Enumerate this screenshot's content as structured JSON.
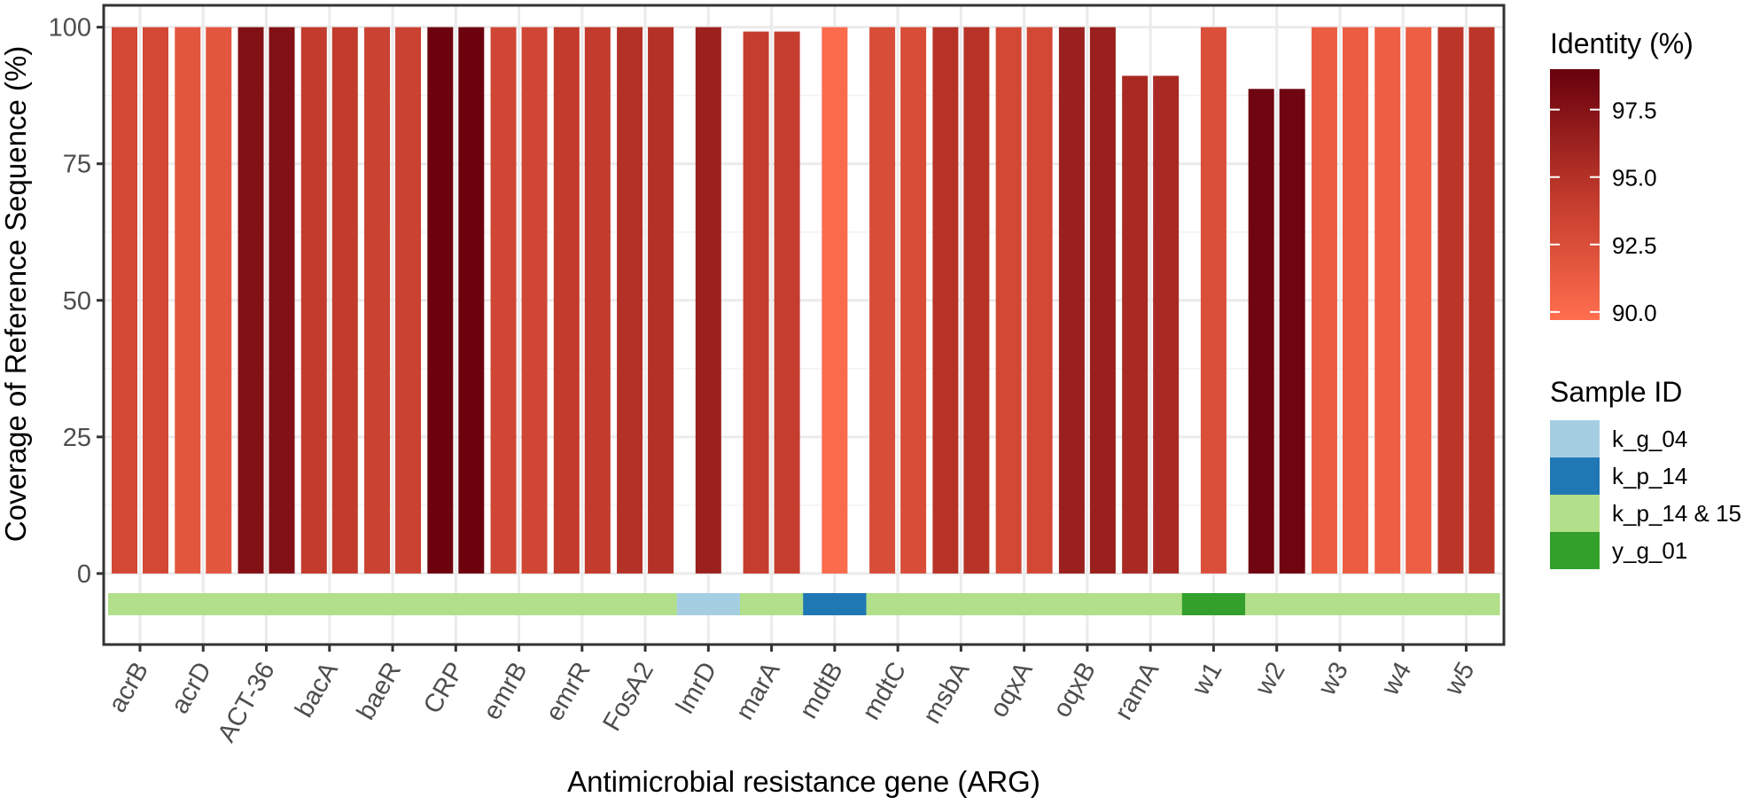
{
  "chart_data": {
    "type": "bar",
    "xlabel": "Antimicrobial resistance gene (ARG)",
    "ylabel": "Coverage of Reference Sequence (%)",
    "ylim": [
      -13,
      104
    ],
    "yticks": [
      0,
      25,
      50,
      75,
      100
    ],
    "grid": true,
    "legend_position": "right",
    "categories": [
      "acrB",
      "acrD",
      "ACT-36",
      "bacA",
      "baeR",
      "CRP",
      "emrB",
      "emrR",
      "FosA2",
      "lmrD",
      "marA",
      "mdtB",
      "mdtC",
      "msbA",
      "oqxA",
      "oqxB",
      "ramA",
      "w1",
      "w2",
      "w3",
      "w4",
      "w5"
    ],
    "sample_strip": [
      "k_p_14 & 15",
      "k_p_14 & 15",
      "k_p_14 & 15",
      "k_p_14 & 15",
      "k_p_14 & 15",
      "k_p_14 & 15",
      "k_p_14 & 15",
      "k_p_14 & 15",
      "k_p_14 & 15",
      "k_g_04",
      "k_p_14 & 15",
      "k_p_14",
      "k_p_14 & 15",
      "k_p_14 & 15",
      "k_p_14 & 15",
      "k_p_14 & 15",
      "k_p_14 & 15",
      "y_g_01",
      "k_p_14 & 15",
      "k_p_14 & 15",
      "k_p_14 & 15",
      "k_p_14 & 15"
    ],
    "bars": [
      {
        "gene": "acrB",
        "slot": 0,
        "coverage": 100,
        "identity": 93.0
      },
      {
        "gene": "acrB",
        "slot": 1,
        "coverage": 100,
        "identity": 93.0
      },
      {
        "gene": "acrD",
        "slot": 0,
        "coverage": 100,
        "identity": 91.8
      },
      {
        "gene": "acrD",
        "slot": 1,
        "coverage": 100,
        "identity": 91.8
      },
      {
        "gene": "ACT-36",
        "slot": 0,
        "coverage": 100,
        "identity": 97.6
      },
      {
        "gene": "ACT-36",
        "slot": 1,
        "coverage": 100,
        "identity": 97.6
      },
      {
        "gene": "bacA",
        "slot": 0,
        "coverage": 100,
        "identity": 94.2
      },
      {
        "gene": "bacA",
        "slot": 1,
        "coverage": 100,
        "identity": 94.2
      },
      {
        "gene": "baeR",
        "slot": 0,
        "coverage": 100,
        "identity": 93.6
      },
      {
        "gene": "baeR",
        "slot": 1,
        "coverage": 100,
        "identity": 93.6
      },
      {
        "gene": "CRP",
        "slot": 0,
        "coverage": 100,
        "identity": 98.8
      },
      {
        "gene": "CRP",
        "slot": 1,
        "coverage": 100,
        "identity": 98.8
      },
      {
        "gene": "emrB",
        "slot": 0,
        "coverage": 100,
        "identity": 93.2
      },
      {
        "gene": "emrB",
        "slot": 1,
        "coverage": 100,
        "identity": 93.2
      },
      {
        "gene": "emrR",
        "slot": 0,
        "coverage": 100,
        "identity": 94.2
      },
      {
        "gene": "emrR",
        "slot": 1,
        "coverage": 100,
        "identity": 94.2
      },
      {
        "gene": "FosA2",
        "slot": 0,
        "coverage": 100,
        "identity": 95.0
      },
      {
        "gene": "FosA2",
        "slot": 1,
        "coverage": 100,
        "identity": 95.0
      },
      {
        "gene": "lmrD",
        "slot": 0.5,
        "coverage": 100,
        "identity": 96.3
      },
      {
        "gene": "marA",
        "slot": 0,
        "coverage": 99.2,
        "identity": 94.0
      },
      {
        "gene": "marA",
        "slot": 1,
        "coverage": 99.2,
        "identity": 94.0
      },
      {
        "gene": "mdtB",
        "slot": 0.5,
        "coverage": 100,
        "identity": 90.0
      },
      {
        "gene": "mdtC",
        "slot": 0,
        "coverage": 100,
        "identity": 92.6
      },
      {
        "gene": "mdtC",
        "slot": 1,
        "coverage": 100,
        "identity": 92.6
      },
      {
        "gene": "msbA",
        "slot": 0,
        "coverage": 100,
        "identity": 94.8
      },
      {
        "gene": "msbA",
        "slot": 1,
        "coverage": 100,
        "identity": 94.8
      },
      {
        "gene": "oqxA",
        "slot": 0,
        "coverage": 100,
        "identity": 93.0
      },
      {
        "gene": "oqxA",
        "slot": 1,
        "coverage": 100,
        "identity": 93.0
      },
      {
        "gene": "oqxB",
        "slot": 0,
        "coverage": 100,
        "identity": 96.4
      },
      {
        "gene": "oqxB",
        "slot": 1,
        "coverage": 100,
        "identity": 96.4
      },
      {
        "gene": "ramA",
        "slot": 0,
        "coverage": 91.1,
        "identity": 95.6
      },
      {
        "gene": "ramA",
        "slot": 1,
        "coverage": 91.1,
        "identity": 95.6
      },
      {
        "gene": "w1",
        "slot": 0.5,
        "coverage": 100,
        "identity": 92.4
      },
      {
        "gene": "w2",
        "slot": 0,
        "coverage": 88.7,
        "identity": 98.6
      },
      {
        "gene": "w2",
        "slot": 1,
        "coverage": 88.7,
        "identity": 98.6
      },
      {
        "gene": "w3",
        "slot": 0,
        "coverage": 100,
        "identity": 91.2
      },
      {
        "gene": "w3",
        "slot": 1,
        "coverage": 100,
        "identity": 91.2
      },
      {
        "gene": "w4",
        "slot": 0,
        "coverage": 100,
        "identity": 91.0
      },
      {
        "gene": "w4",
        "slot": 1,
        "coverage": 100,
        "identity": 91.0
      },
      {
        "gene": "w5",
        "slot": 0,
        "coverage": 100,
        "identity": 94.6
      },
      {
        "gene": "w5",
        "slot": 1,
        "coverage": 100,
        "identity": 94.6
      }
    ],
    "color_legend": {
      "title": "Identity (%)",
      "min": 89.7,
      "max": 99.0,
      "ticks": [
        {
          "value": 97.5,
          "label": "97.5"
        },
        {
          "value": 95.0,
          "label": "95.0"
        },
        {
          "value": 92.5,
          "label": "92.5"
        },
        {
          "value": 90.0,
          "label": "90.0"
        }
      ],
      "low_color": "#FF6E4E",
      "mid_color": "#C0392B",
      "high_color": "#67000D"
    },
    "sample_legend": {
      "title": "Sample ID",
      "items": [
        {
          "label": "k_g_04",
          "color": "#A6CEE3"
        },
        {
          "label": "k_p_14",
          "color": "#1F78B4"
        },
        {
          "label": "k_p_14 & 15",
          "color": "#B2DF8A"
        },
        {
          "label": "y_g_01",
          "color": "#33A02C"
        }
      ]
    }
  }
}
